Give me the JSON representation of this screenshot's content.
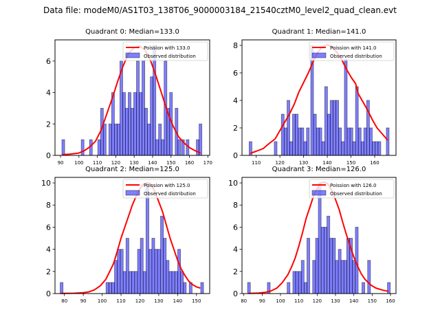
{
  "suptitle": "Data file: modeM0/AS1T03_138T06_9000003184_21540cztM0_level2_quad_clean.evt",
  "colors": {
    "bar_fill": "#0000ff",
    "bar_alpha": 0.5,
    "bar_edge": "#000000",
    "curve": "#ff0000"
  },
  "legend": {
    "curve_label_prefix": "Poission with ",
    "bars_label": "Observed distribution",
    "placement": "upper-right"
  },
  "chart_data": [
    {
      "type": "bar",
      "title": "Quadrant 0: Median=133.0",
      "median": 133.0,
      "curve_label": "Poission with 133.0",
      "xlim": [
        87,
        171
      ],
      "ylim": [
        0,
        7.35
      ],
      "xticks": [
        90,
        100,
        110,
        120,
        130,
        140,
        150,
        160,
        170
      ],
      "yticks": [
        0,
        2,
        4,
        6
      ],
      "bin_width": 1.52,
      "bars": [
        [
          91.5,
          1
        ],
        [
          102,
          1
        ],
        [
          106.5,
          1
        ],
        [
          111,
          1
        ],
        [
          112.5,
          3
        ],
        [
          114,
          2
        ],
        [
          117,
          2
        ],
        [
          118.5,
          4
        ],
        [
          120,
          2
        ],
        [
          121.5,
          2
        ],
        [
          123,
          6
        ],
        [
          124.5,
          4
        ],
        [
          126,
          3
        ],
        [
          127.5,
          4
        ],
        [
          129,
          3
        ],
        [
          130.5,
          4
        ],
        [
          132,
          6
        ],
        [
          133.5,
          4
        ],
        [
          135,
          6
        ],
        [
          136.5,
          3
        ],
        [
          138,
          2
        ],
        [
          139.5,
          5
        ],
        [
          141,
          7
        ],
        [
          142.5,
          1
        ],
        [
          144,
          2
        ],
        [
          145.5,
          1
        ],
        [
          147,
          6
        ],
        [
          148.5,
          3
        ],
        [
          150,
          4
        ],
        [
          153,
          3
        ],
        [
          154.5,
          1
        ],
        [
          156.5,
          1
        ],
        [
          159,
          1
        ],
        [
          164.5,
          1
        ],
        [
          166,
          2
        ]
      ],
      "curve": [
        [
          91,
          0.05
        ],
        [
          95,
          0.08
        ],
        [
          100,
          0.15
        ],
        [
          103,
          0.3
        ],
        [
          106,
          0.55
        ],
        [
          109,
          0.9
        ],
        [
          112,
          1.6
        ],
        [
          115,
          2.6
        ],
        [
          118,
          3.6
        ],
        [
          121,
          4.7
        ],
        [
          124,
          5.7
        ],
        [
          127,
          6.5
        ],
        [
          130,
          6.85
        ],
        [
          133,
          6.95
        ],
        [
          136,
          6.7
        ],
        [
          139,
          6.0
        ],
        [
          142,
          5.0
        ],
        [
          145,
          3.9
        ],
        [
          148,
          2.8
        ],
        [
          151,
          1.9
        ],
        [
          154,
          1.2
        ],
        [
          157,
          0.8
        ],
        [
          160,
          0.5
        ],
        [
          163,
          0.3
        ],
        [
          166,
          0.15
        ]
      ]
    },
    {
      "type": "bar",
      "title": "Quadrant 1: Median=141.0",
      "median": 141.0,
      "curve_label": "Poission with 141.0",
      "xlim": [
        104,
        169
      ],
      "ylim": [
        0,
        8.4
      ],
      "xticks": [
        110,
        120,
        130,
        140,
        150,
        160
      ],
      "yticks": [
        0,
        2,
        4,
        6,
        8
      ],
      "bin_width": 1.18,
      "bars": [
        [
          107.6,
          1
        ],
        [
          118.2,
          1
        ],
        [
          121.2,
          3
        ],
        [
          122.4,
          2
        ],
        [
          123.6,
          4
        ],
        [
          124.7,
          1
        ],
        [
          125.9,
          3
        ],
        [
          127.1,
          3
        ],
        [
          128.3,
          2
        ],
        [
          129.5,
          2
        ],
        [
          130.7,
          1
        ],
        [
          131.8,
          2
        ],
        [
          133.6,
          8
        ],
        [
          134.8,
          3
        ],
        [
          136,
          2
        ],
        [
          137.1,
          2
        ],
        [
          138.3,
          1
        ],
        [
          139.5,
          5
        ],
        [
          140.7,
          3
        ],
        [
          141.8,
          4
        ],
        [
          143,
          4
        ],
        [
          144.2,
          4
        ],
        [
          145.4,
          2
        ],
        [
          146.6,
          1
        ],
        [
          147.8,
          7
        ],
        [
          149,
          2
        ],
        [
          150.2,
          2
        ],
        [
          151.3,
          1
        ],
        [
          152.5,
          5
        ],
        [
          153.7,
          2
        ],
        [
          154.9,
          1
        ],
        [
          156,
          2
        ],
        [
          157.2,
          4
        ],
        [
          158.4,
          2
        ],
        [
          159.6,
          1
        ],
        [
          160.8,
          1
        ],
        [
          162,
          1
        ],
        [
          165.5,
          2
        ]
      ],
      "curve": [
        [
          107.5,
          0.15
        ],
        [
          110,
          0.3
        ],
        [
          113,
          0.5
        ],
        [
          115,
          0.8
        ],
        [
          118,
          1.2
        ],
        [
          120,
          1.8
        ],
        [
          122,
          2.4
        ],
        [
          124,
          3.0
        ],
        [
          126,
          3.7
        ],
        [
          128,
          4.6
        ],
        [
          130,
          5.3
        ],
        [
          132,
          6.0
        ],
        [
          134,
          6.8
        ],
        [
          136,
          7.5
        ],
        [
          138,
          7.9
        ],
        [
          140,
          8.05
        ],
        [
          142,
          7.9
        ],
        [
          144,
          7.5
        ],
        [
          146,
          7.0
        ],
        [
          148,
          6.3
        ],
        [
          150,
          5.7
        ],
        [
          152,
          5.2
        ],
        [
          153,
          4.5
        ],
        [
          155,
          3.9
        ],
        [
          157,
          3.3
        ],
        [
          159,
          2.6
        ],
        [
          161,
          2.0
        ],
        [
          163,
          1.6
        ],
        [
          165.5,
          1.1
        ]
      ]
    },
    {
      "type": "bar",
      "title": "Quadrant 2: Median=125.0",
      "median": 125.0,
      "curve_label": "Poission with 125.0",
      "xlim": [
        75,
        157
      ],
      "ylim": [
        0,
        10.5
      ],
      "xticks": [
        80,
        90,
        100,
        110,
        120,
        130,
        140,
        150
      ],
      "yticks": [
        0,
        2,
        4,
        6,
        8,
        10
      ],
      "bin_width": 1.52,
      "bars": [
        [
          78.5,
          1
        ],
        [
          102.8,
          1
        ],
        [
          104.3,
          1
        ],
        [
          105.8,
          1
        ],
        [
          107.3,
          3
        ],
        [
          108.8,
          4
        ],
        [
          110.4,
          4
        ],
        [
          111.9,
          2
        ],
        [
          113.4,
          5
        ],
        [
          114.9,
          2
        ],
        [
          116.4,
          2
        ],
        [
          118,
          2
        ],
        [
          119.5,
          4
        ],
        [
          121,
          5
        ],
        [
          122.5,
          2
        ],
        [
          124,
          10
        ],
        [
          125.6,
          4
        ],
        [
          127.1,
          5
        ],
        [
          128.6,
          4
        ],
        [
          130.1,
          4
        ],
        [
          131.7,
          7
        ],
        [
          133.2,
          5
        ],
        [
          134.7,
          3
        ],
        [
          136.2,
          2
        ],
        [
          137.7,
          2
        ],
        [
          139.3,
          2
        ],
        [
          140.8,
          4
        ],
        [
          142.3,
          2
        ],
        [
          143.8,
          1
        ],
        [
          146.9,
          1
        ],
        [
          153,
          1
        ]
      ],
      "curve": [
        [
          78,
          0.02
        ],
        [
          85,
          0.03
        ],
        [
          90,
          0.08
        ],
        [
          93,
          0.15
        ],
        [
          96,
          0.35
        ],
        [
          99,
          0.7
        ],
        [
          102,
          1.3
        ],
        [
          104,
          2.0
        ],
        [
          106,
          2.7
        ],
        [
          108,
          3.8
        ],
        [
          110,
          5.0
        ],
        [
          112,
          6.0
        ],
        [
          114,
          7.0
        ],
        [
          116,
          8.0
        ],
        [
          118,
          8.8
        ],
        [
          120,
          9.5
        ],
        [
          122,
          9.9
        ],
        [
          124,
          10.0
        ],
        [
          126,
          9.8
        ],
        [
          128,
          9.2
        ],
        [
          130,
          8.3
        ],
        [
          132,
          7.4
        ],
        [
          134,
          6.2
        ],
        [
          136,
          5.0
        ],
        [
          138,
          4.0
        ],
        [
          140,
          3.0
        ],
        [
          142,
          2.2
        ],
        [
          144,
          1.6
        ],
        [
          146,
          1.1
        ],
        [
          148,
          0.8
        ],
        [
          150,
          0.6
        ],
        [
          152,
          0.5
        ]
      ]
    },
    {
      "type": "bar",
      "title": "Quadrant 3: Median=126.0",
      "median": 126.0,
      "curve_label": "Poission with 126.0",
      "xlim": [
        79,
        163
      ],
      "ylim": [
        0,
        10.5
      ],
      "xticks": [
        80,
        90,
        100,
        110,
        120,
        130,
        140,
        150,
        160
      ],
      "yticks": [
        0,
        2,
        4,
        6,
        8,
        10
      ],
      "bin_width": 1.55,
      "bars": [
        [
          82.8,
          1
        ],
        [
          93.6,
          1
        ],
        [
          104.4,
          1
        ],
        [
          107.5,
          2
        ],
        [
          109,
          2
        ],
        [
          110.6,
          2
        ],
        [
          112.1,
          3
        ],
        [
          113.7,
          1
        ],
        [
          115.2,
          5
        ],
        [
          118.3,
          3
        ],
        [
          119.9,
          5
        ],
        [
          121.4,
          10
        ],
        [
          123,
          6
        ],
        [
          124.5,
          6
        ],
        [
          126.1,
          7
        ],
        [
          127.6,
          5
        ],
        [
          129.2,
          5
        ],
        [
          130.7,
          3
        ],
        [
          132.3,
          4
        ],
        [
          133.8,
          3
        ],
        [
          135.4,
          3
        ],
        [
          136.9,
          5
        ],
        [
          138.5,
          5
        ],
        [
          140,
          3
        ],
        [
          141.6,
          6
        ],
        [
          145.2,
          1
        ],
        [
          148.3,
          3
        ],
        [
          159.1,
          1
        ]
      ],
      "curve": [
        [
          82.5,
          0.02
        ],
        [
          88,
          0.05
        ],
        [
          92,
          0.12
        ],
        [
          95,
          0.25
        ],
        [
          98,
          0.5
        ],
        [
          101,
          1.0
        ],
        [
          104,
          1.7
        ],
        [
          106,
          2.4
        ],
        [
          108,
          3.2
        ],
        [
          110,
          4.3
        ],
        [
          112,
          5.5
        ],
        [
          114,
          6.8
        ],
        [
          116,
          7.8
        ],
        [
          118,
          8.8
        ],
        [
          120,
          9.5
        ],
        [
          122,
          10.0
        ],
        [
          124,
          10.05
        ],
        [
          126,
          9.9
        ],
        [
          128,
          9.3
        ],
        [
          130,
          8.5
        ],
        [
          132,
          7.6
        ],
        [
          134,
          6.4
        ],
        [
          136,
          5.3
        ],
        [
          138,
          4.3
        ],
        [
          140,
          3.3
        ],
        [
          142,
          2.5
        ],
        [
          144,
          1.8
        ],
        [
          146,
          1.3
        ],
        [
          149,
          0.8
        ],
        [
          152,
          0.5
        ],
        [
          156,
          0.3
        ],
        [
          159,
          0.2
        ]
      ]
    }
  ]
}
